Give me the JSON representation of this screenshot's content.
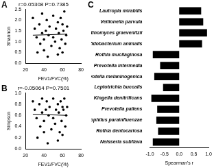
{
  "chart_data": [
    {
      "type": "scatter",
      "panel_label": "A",
      "title": "r=0.05308 P=0.7385",
      "x_label": "FEV1/FVC(%)",
      "y_label": "Shannon",
      "series": [
        {
          "type": "scatter",
          "color": "#000000",
          "marker": "circle",
          "x": [
            28,
            30,
            32,
            33,
            35,
            36,
            38,
            38,
            40,
            40,
            42,
            43,
            44,
            45,
            46,
            48,
            50,
            50,
            52,
            53,
            55,
            55,
            56,
            57,
            58,
            59,
            60,
            60,
            61,
            62,
            63,
            64,
            65
          ],
          "values": [
            2.1,
            1.6,
            1.2,
            0.5,
            1.8,
            0.9,
            1.4,
            2.3,
            1.1,
            0.6,
            1.5,
            2.0,
            0.3,
            1.3,
            1.7,
            0.8,
            1.2,
            2.2,
            1.0,
            1.6,
            0.4,
            1.9,
            1.4,
            0.7,
            2.1,
            1.1,
            1.8,
            0.5,
            1.5,
            2.4,
            0.9,
            1.3,
            1.7
          ]
        },
        {
          "type": "line",
          "color": "#000000",
          "line_style": "solid",
          "x": [
            28,
            65
          ],
          "values": [
            1.3,
            1.35
          ]
        }
      ],
      "xlim": [
        20,
        80
      ],
      "xticks": [
        20,
        40,
        60,
        80
      ],
      "ylim": [
        0,
        2.5
      ],
      "yticks": [
        {
          "value": 0,
          "label": "0.0"
        },
        0.5,
        {
          "value": 1,
          "label": "1.0"
        },
        1.5,
        {
          "value": 2,
          "label": "2.0"
        },
        2.5
      ],
      "grid": false
    },
    {
      "type": "scatter",
      "panel_label": "B",
      "title": "r=-0.05064 P=0.7501",
      "x_label": "FEV1/FVC(%)",
      "y_label": "Simpson",
      "series": [
        {
          "type": "scatter",
          "color": "#000000",
          "marker": "circle",
          "x": [
            28,
            30,
            32,
            33,
            35,
            36,
            38,
            38,
            40,
            40,
            42,
            43,
            44,
            45,
            46,
            48,
            50,
            50,
            52,
            53,
            55,
            55,
            56,
            57,
            58,
            59,
            60,
            60,
            61,
            62,
            63,
            64,
            65
          ],
          "values": [
            0.85,
            0.7,
            0.55,
            0.2,
            0.8,
            0.4,
            0.65,
            0.9,
            0.5,
            0.3,
            0.7,
            0.85,
            0.1,
            0.6,
            0.75,
            0.35,
            0.55,
            0.9,
            0.45,
            0.7,
            0.15,
            0.8,
            0.65,
            0.3,
            0.85,
            0.5,
            0.75,
            0.25,
            0.7,
            0.9,
            0.4,
            0.6,
            0.75
          ]
        },
        {
          "type": "line",
          "color": "#000000",
          "line_style": "solid",
          "x": [
            28,
            65
          ],
          "values": [
            0.62,
            0.6
          ]
        }
      ],
      "xlim": [
        20,
        80
      ],
      "xticks": [
        20,
        40,
        60,
        80
      ],
      "ylim": [
        0,
        1
      ],
      "yticks": [
        {
          "value": 0,
          "label": "0.0"
        },
        0.2,
        0.4,
        0.6,
        0.8,
        {
          "value": 1,
          "label": "1.0"
        }
      ],
      "grid": false
    },
    {
      "type": "bar",
      "panel_label": "C",
      "orientation": "horizontal",
      "x_label": "Spearman's r",
      "categories": [
        "Lautropia mirabilis",
        "Veillonella parvula",
        "Actinomyces graevenitzii",
        "Bifidobacterium animalis",
        "Rothia mucilaginosa",
        "Prevotella intermedia",
        "Prevotella melaninogenica",
        "Leptotrichia buccalis",
        "Kingella denitrificans",
        "Prevotella pallens",
        "Haemophilus parainfluenzae",
        "Rothia dentocariosa",
        "Neisseria subflava"
      ],
      "values": [
        0.75,
        0.82,
        0.95,
        0.78,
        -0.9,
        -0.65,
        -0.85,
        -0.55,
        -0.95,
        -0.75,
        -0.78,
        -0.72,
        -0.9
      ],
      "color": "#000000",
      "xlim": [
        -1,
        1
      ],
      "xticks": [
        {
          "value": -1,
          "label": "-1.0"
        },
        -0.5,
        {
          "value": 0,
          "label": "0.0"
        },
        0.5,
        {
          "value": 1,
          "label": "1.0"
        }
      ],
      "grid": false
    }
  ]
}
